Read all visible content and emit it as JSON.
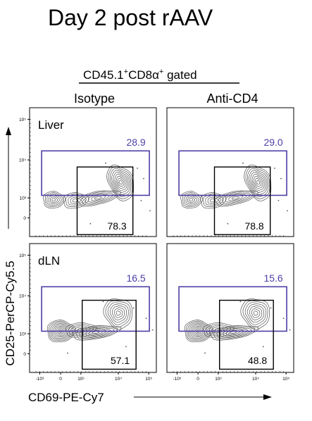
{
  "title": "Day 2 post rAAV",
  "gate_label": {
    "main": "CD45.1",
    "sup1": "+",
    "mid": "CD8α",
    "sup2": "+",
    "tail": " gated"
  },
  "column_headers": [
    "Isotype",
    "Anti-CD4"
  ],
  "row_labels": [
    "Liver",
    "dLN"
  ],
  "axis_labels": {
    "y": "CD25-PerCP-Cy5.5",
    "x": "CD69-PE-Cy7"
  },
  "tick_labels": {
    "y": [
      "10⁵",
      "10⁴",
      "10³",
      "0"
    ],
    "x": [
      "-10³",
      "0",
      "10³",
      "10⁴",
      "10⁵"
    ]
  },
  "colors": {
    "cd25_gate": "#4b3fa6",
    "cd69_gate": "#000000",
    "contour": "#555555",
    "frame": "#000000"
  },
  "chart_data": {
    "type": "contour",
    "x_axis": "CD69-PE-Cy7",
    "y_axis": "CD25-PerCP-Cy5.5",
    "scale": "biexponential",
    "gates": [
      "CD25 high",
      "CD69 high"
    ],
    "panels": [
      {
        "tissue": "Liver",
        "treatment": "Isotype",
        "cd25_gate_pct": "28.9",
        "cd69_gate_pct": "78.3"
      },
      {
        "tissue": "Liver",
        "treatment": "Anti-CD4",
        "cd25_gate_pct": "29.0",
        "cd69_gate_pct": "78.8"
      },
      {
        "tissue": "dLN",
        "treatment": "Isotype",
        "cd25_gate_pct": "16.5",
        "cd69_gate_pct": "57.1"
      },
      {
        "tissue": "dLN",
        "treatment": "Anti-CD4",
        "cd25_gate_pct": "15.6",
        "cd69_gate_pct": "48.8"
      }
    ]
  }
}
